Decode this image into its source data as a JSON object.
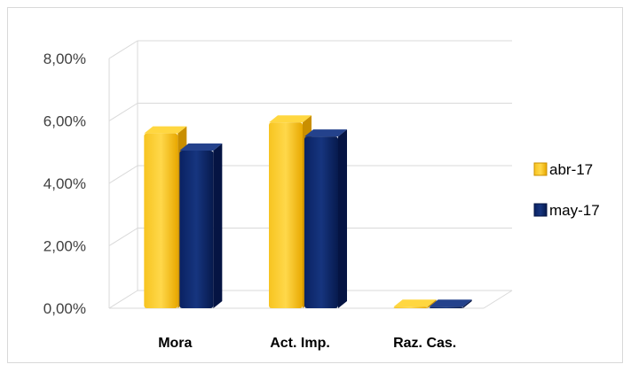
{
  "chart_data": {
    "type": "bar",
    "categories": [
      "Mora",
      "Act. Imp.",
      "Raz. Cas."
    ],
    "series": [
      {
        "name": "abr-17",
        "values": [
          5.6,
          5.95,
          0.05
        ],
        "color": "#f2b705"
      },
      {
        "name": "may-17",
        "values": [
          5.05,
          5.5,
          0.05
        ],
        "color": "#0e2a6b"
      }
    ],
    "ylim": [
      0,
      8
    ],
    "yticks": [
      "0,00%",
      "2,00%",
      "4,00%",
      "6,00%",
      "8,00%"
    ],
    "grid": true,
    "legend_position": "right",
    "title": "",
    "xlabel": "",
    "ylabel": ""
  }
}
